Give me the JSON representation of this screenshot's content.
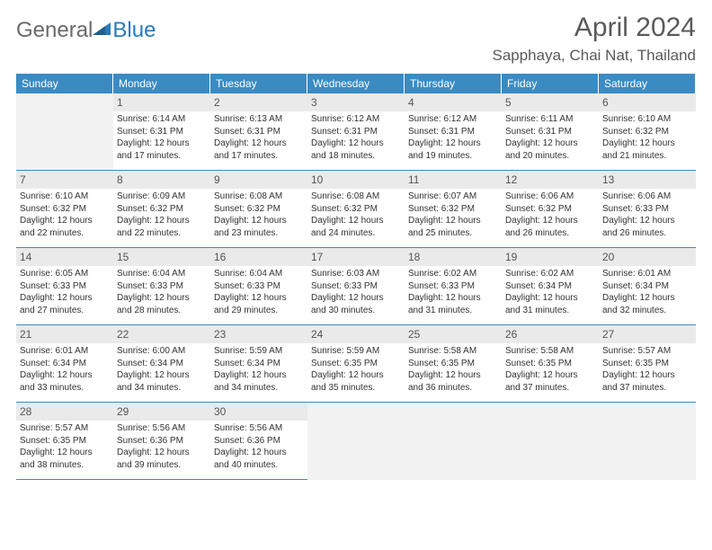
{
  "logo": {
    "text1": "General",
    "text2": "Blue",
    "icon_color": "#2a7ab9"
  },
  "title": "April 2024",
  "location": "Sapphaya, Chai Nat, Thailand",
  "colors": {
    "header_bg": "#3b8bc3",
    "header_text": "#ffffff",
    "daynum_bg": "#eaeaea",
    "border": "#3b8bc3",
    "empty_bg": "#f2f2f2",
    "text": "#333333"
  },
  "day_names": [
    "Sunday",
    "Monday",
    "Tuesday",
    "Wednesday",
    "Thursday",
    "Friday",
    "Saturday"
  ],
  "weeks": [
    [
      {
        "blank": true
      },
      {
        "n": "1",
        "sunrise": "Sunrise: 6:14 AM",
        "sunset": "Sunset: 6:31 PM",
        "daylight": "Daylight: 12 hours and 17 minutes."
      },
      {
        "n": "2",
        "sunrise": "Sunrise: 6:13 AM",
        "sunset": "Sunset: 6:31 PM",
        "daylight": "Daylight: 12 hours and 17 minutes."
      },
      {
        "n": "3",
        "sunrise": "Sunrise: 6:12 AM",
        "sunset": "Sunset: 6:31 PM",
        "daylight": "Daylight: 12 hours and 18 minutes."
      },
      {
        "n": "4",
        "sunrise": "Sunrise: 6:12 AM",
        "sunset": "Sunset: 6:31 PM",
        "daylight": "Daylight: 12 hours and 19 minutes."
      },
      {
        "n": "5",
        "sunrise": "Sunrise: 6:11 AM",
        "sunset": "Sunset: 6:31 PM",
        "daylight": "Daylight: 12 hours and 20 minutes."
      },
      {
        "n": "6",
        "sunrise": "Sunrise: 6:10 AM",
        "sunset": "Sunset: 6:32 PM",
        "daylight": "Daylight: 12 hours and 21 minutes."
      }
    ],
    [
      {
        "n": "7",
        "sunrise": "Sunrise: 6:10 AM",
        "sunset": "Sunset: 6:32 PM",
        "daylight": "Daylight: 12 hours and 22 minutes."
      },
      {
        "n": "8",
        "sunrise": "Sunrise: 6:09 AM",
        "sunset": "Sunset: 6:32 PM",
        "daylight": "Daylight: 12 hours and 22 minutes."
      },
      {
        "n": "9",
        "sunrise": "Sunrise: 6:08 AM",
        "sunset": "Sunset: 6:32 PM",
        "daylight": "Daylight: 12 hours and 23 minutes."
      },
      {
        "n": "10",
        "sunrise": "Sunrise: 6:08 AM",
        "sunset": "Sunset: 6:32 PM",
        "daylight": "Daylight: 12 hours and 24 minutes."
      },
      {
        "n": "11",
        "sunrise": "Sunrise: 6:07 AM",
        "sunset": "Sunset: 6:32 PM",
        "daylight": "Daylight: 12 hours and 25 minutes."
      },
      {
        "n": "12",
        "sunrise": "Sunrise: 6:06 AM",
        "sunset": "Sunset: 6:32 PM",
        "daylight": "Daylight: 12 hours and 26 minutes."
      },
      {
        "n": "13",
        "sunrise": "Sunrise: 6:06 AM",
        "sunset": "Sunset: 6:33 PM",
        "daylight": "Daylight: 12 hours and 26 minutes."
      }
    ],
    [
      {
        "n": "14",
        "sunrise": "Sunrise: 6:05 AM",
        "sunset": "Sunset: 6:33 PM",
        "daylight": "Daylight: 12 hours and 27 minutes."
      },
      {
        "n": "15",
        "sunrise": "Sunrise: 6:04 AM",
        "sunset": "Sunset: 6:33 PM",
        "daylight": "Daylight: 12 hours and 28 minutes."
      },
      {
        "n": "16",
        "sunrise": "Sunrise: 6:04 AM",
        "sunset": "Sunset: 6:33 PM",
        "daylight": "Daylight: 12 hours and 29 minutes."
      },
      {
        "n": "17",
        "sunrise": "Sunrise: 6:03 AM",
        "sunset": "Sunset: 6:33 PM",
        "daylight": "Daylight: 12 hours and 30 minutes."
      },
      {
        "n": "18",
        "sunrise": "Sunrise: 6:02 AM",
        "sunset": "Sunset: 6:33 PM",
        "daylight": "Daylight: 12 hours and 31 minutes."
      },
      {
        "n": "19",
        "sunrise": "Sunrise: 6:02 AM",
        "sunset": "Sunset: 6:34 PM",
        "daylight": "Daylight: 12 hours and 31 minutes."
      },
      {
        "n": "20",
        "sunrise": "Sunrise: 6:01 AM",
        "sunset": "Sunset: 6:34 PM",
        "daylight": "Daylight: 12 hours and 32 minutes."
      }
    ],
    [
      {
        "n": "21",
        "sunrise": "Sunrise: 6:01 AM",
        "sunset": "Sunset: 6:34 PM",
        "daylight": "Daylight: 12 hours and 33 minutes."
      },
      {
        "n": "22",
        "sunrise": "Sunrise: 6:00 AM",
        "sunset": "Sunset: 6:34 PM",
        "daylight": "Daylight: 12 hours and 34 minutes."
      },
      {
        "n": "23",
        "sunrise": "Sunrise: 5:59 AM",
        "sunset": "Sunset: 6:34 PM",
        "daylight": "Daylight: 12 hours and 34 minutes."
      },
      {
        "n": "24",
        "sunrise": "Sunrise: 5:59 AM",
        "sunset": "Sunset: 6:35 PM",
        "daylight": "Daylight: 12 hours and 35 minutes."
      },
      {
        "n": "25",
        "sunrise": "Sunrise: 5:58 AM",
        "sunset": "Sunset: 6:35 PM",
        "daylight": "Daylight: 12 hours and 36 minutes."
      },
      {
        "n": "26",
        "sunrise": "Sunrise: 5:58 AM",
        "sunset": "Sunset: 6:35 PM",
        "daylight": "Daylight: 12 hours and 37 minutes."
      },
      {
        "n": "27",
        "sunrise": "Sunrise: 5:57 AM",
        "sunset": "Sunset: 6:35 PM",
        "daylight": "Daylight: 12 hours and 37 minutes."
      }
    ],
    [
      {
        "n": "28",
        "sunrise": "Sunrise: 5:57 AM",
        "sunset": "Sunset: 6:35 PM",
        "daylight": "Daylight: 12 hours and 38 minutes."
      },
      {
        "n": "29",
        "sunrise": "Sunrise: 5:56 AM",
        "sunset": "Sunset: 6:36 PM",
        "daylight": "Daylight: 12 hours and 39 minutes."
      },
      {
        "n": "30",
        "sunrise": "Sunrise: 5:56 AM",
        "sunset": "Sunset: 6:36 PM",
        "daylight": "Daylight: 12 hours and 40 minutes."
      },
      {
        "trailing": true
      },
      {
        "trailing": true
      },
      {
        "trailing": true
      },
      {
        "trailing": true
      }
    ]
  ]
}
